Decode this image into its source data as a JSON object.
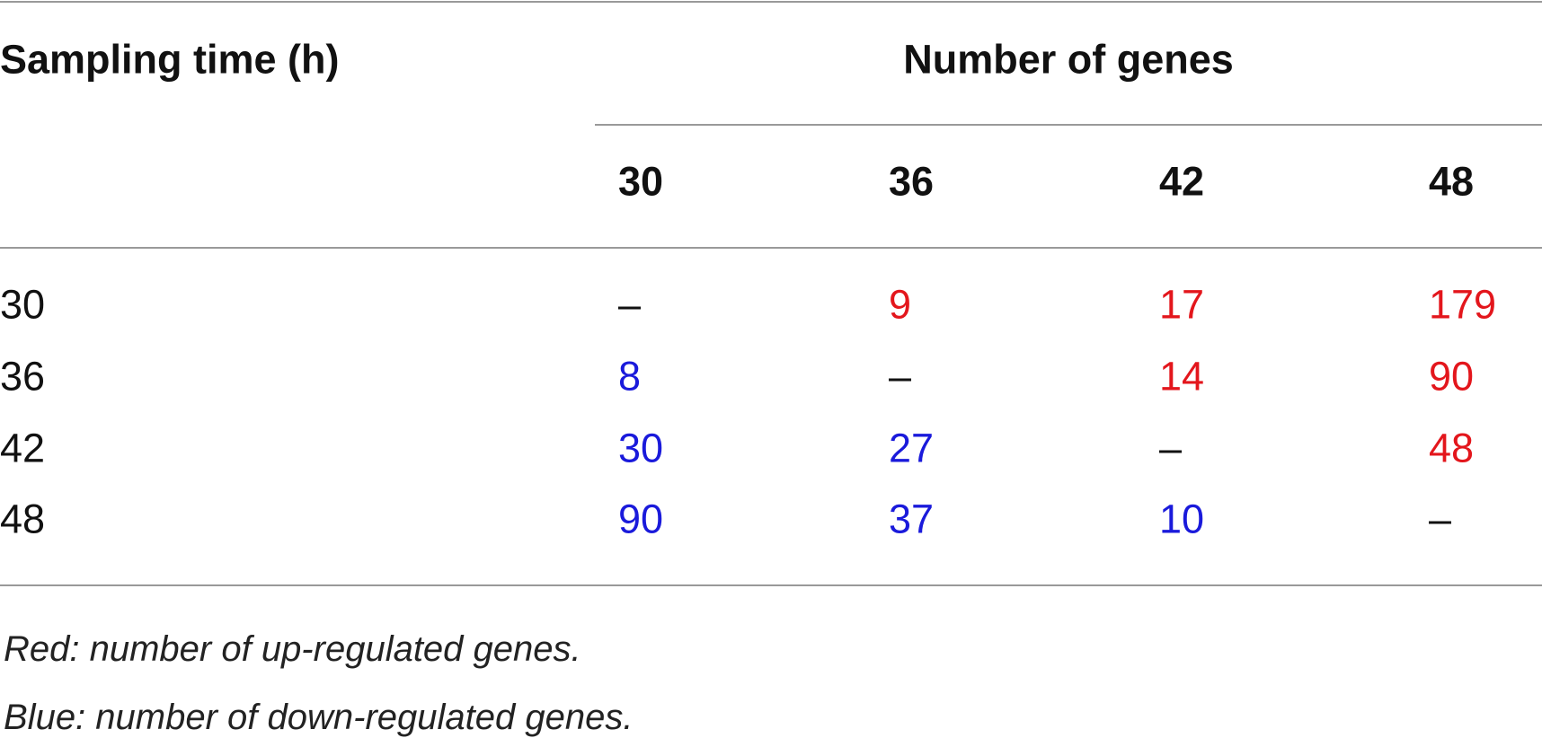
{
  "table": {
    "header": {
      "row_label": "Sampling time (h)",
      "group": "Number of genes",
      "columns": [
        "30",
        "36",
        "42",
        "48"
      ]
    },
    "rows": [
      {
        "label": "30",
        "cells": [
          {
            "text": "–"
          },
          {
            "text": "9",
            "color": "#e3161c"
          },
          {
            "text": "17",
            "color": "#e3161c"
          },
          {
            "text": "179",
            "color": "#e3161c"
          }
        ]
      },
      {
        "label": "36",
        "cells": [
          {
            "text": "8",
            "color": "#1a1adb"
          },
          {
            "text": "–"
          },
          {
            "text": "14",
            "color": "#e3161c"
          },
          {
            "text": "90",
            "color": "#e3161c"
          }
        ]
      },
      {
        "label": "42",
        "cells": [
          {
            "text": "30",
            "color": "#1a1adb"
          },
          {
            "text": "27",
            "color": "#1a1adb"
          },
          {
            "text": "–"
          },
          {
            "text": "48",
            "color": "#e3161c"
          }
        ]
      },
      {
        "label": "48",
        "cells": [
          {
            "text": "90",
            "color": "#1a1adb"
          },
          {
            "text": "37",
            "color": "#1a1adb"
          },
          {
            "text": "10",
            "color": "#1a1adb"
          },
          {
            "text": "–"
          }
        ]
      }
    ],
    "footnotes": [
      "Red: number of up-regulated genes.",
      "Blue: number of down-regulated genes."
    ]
  }
}
